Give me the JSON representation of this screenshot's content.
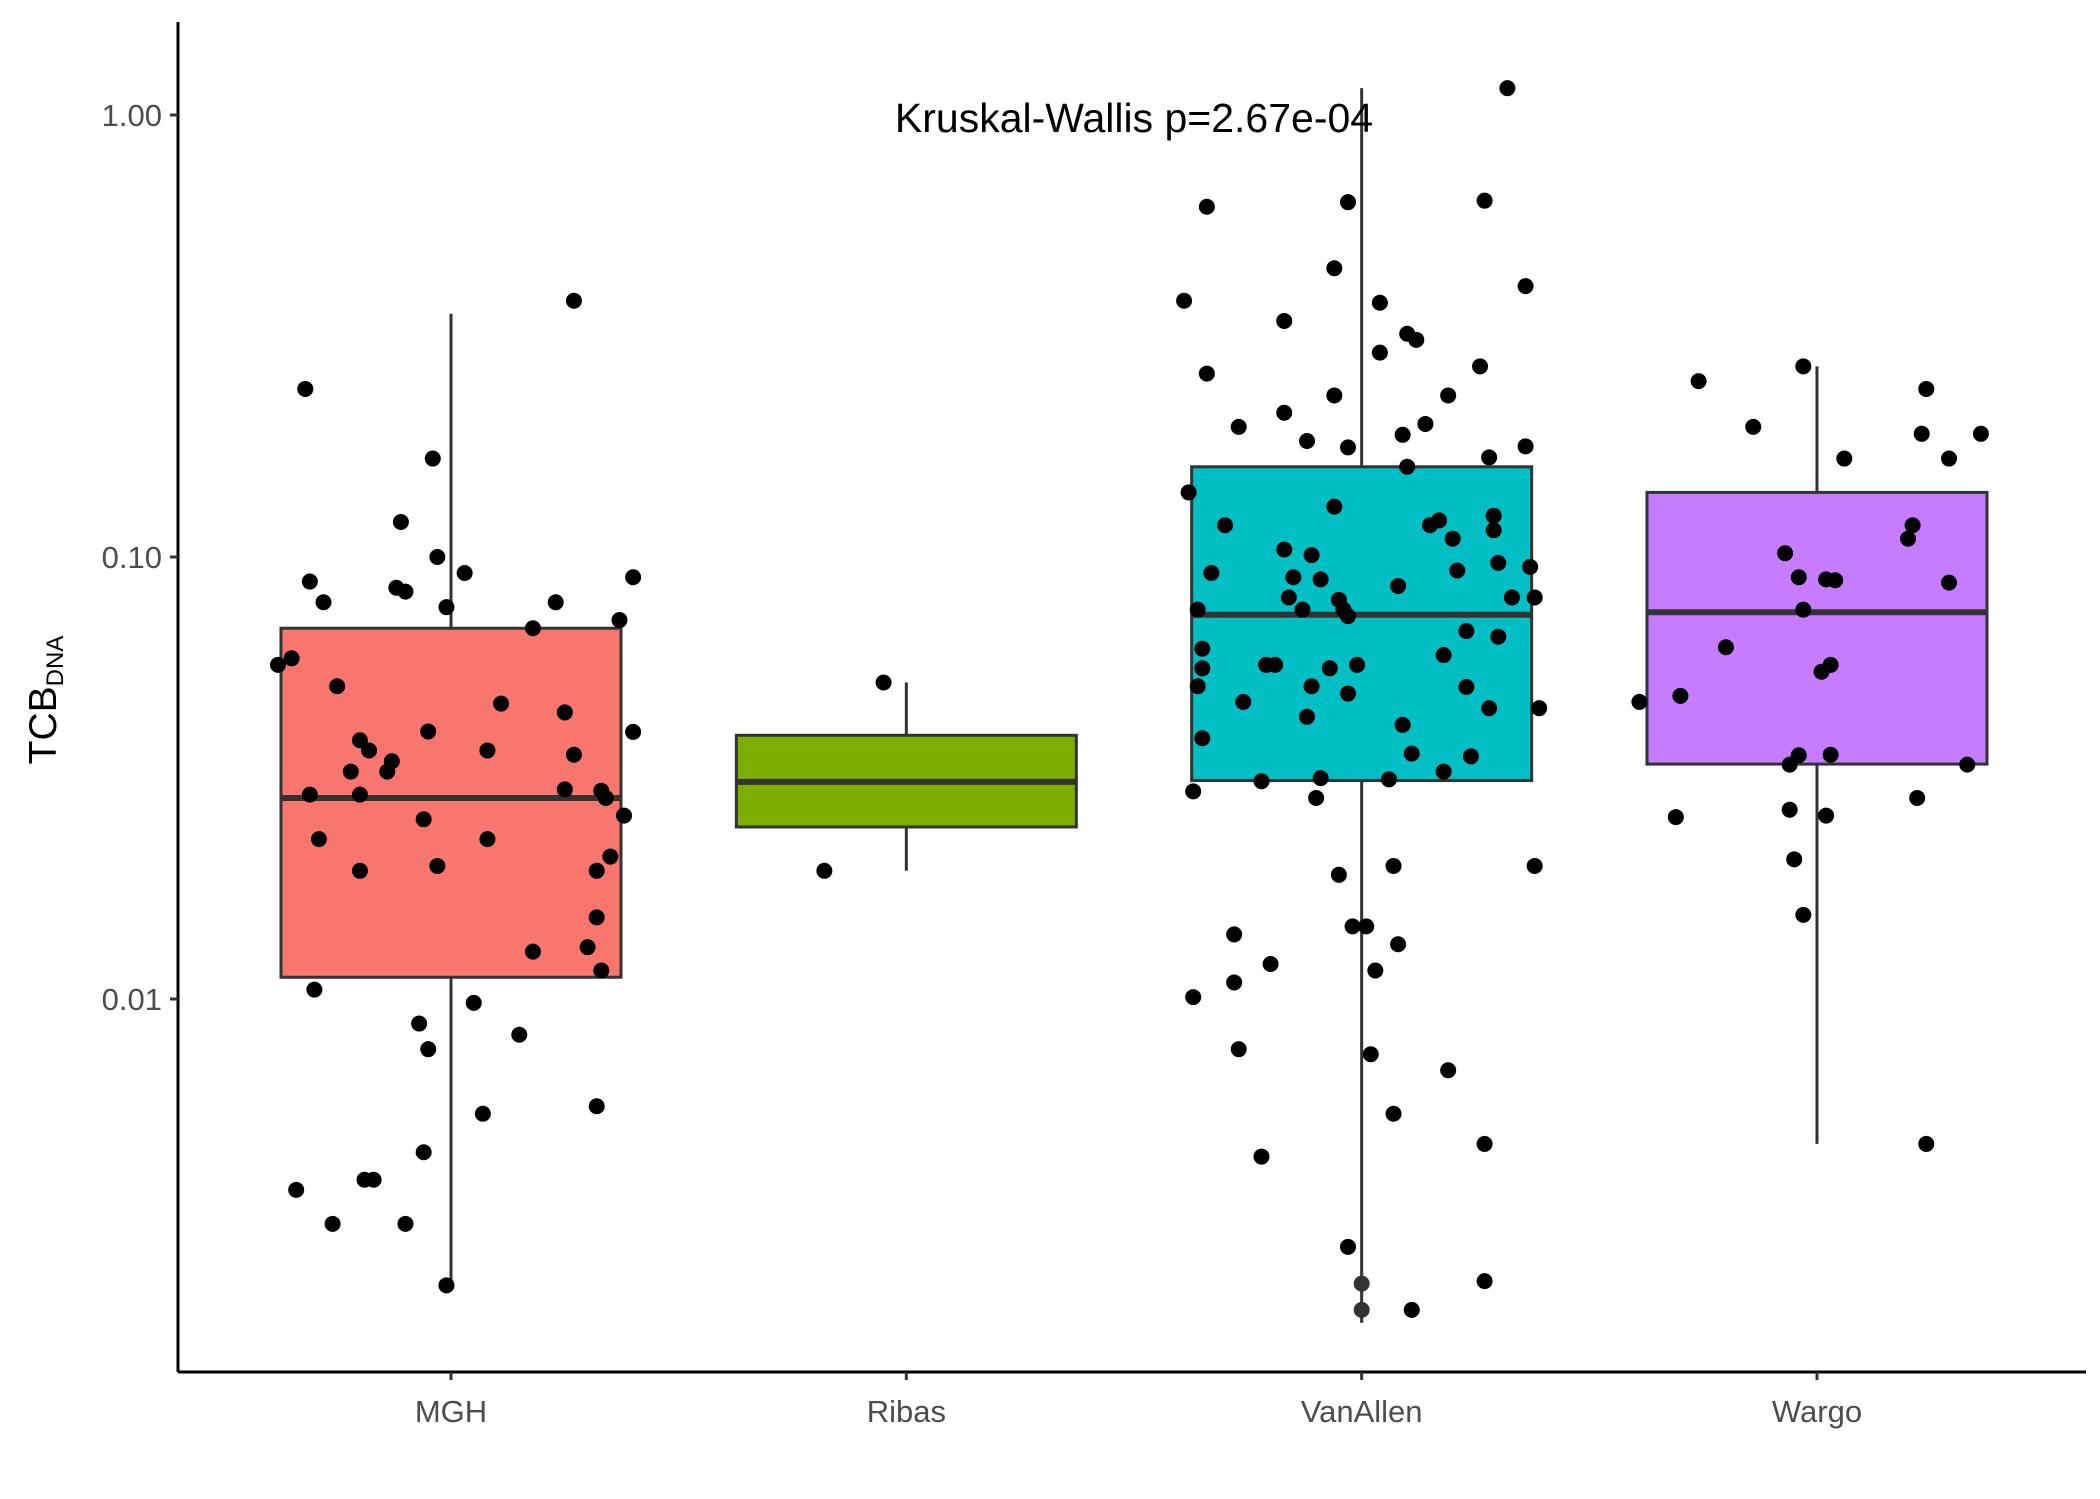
{
  "chart_data": {
    "type": "box",
    "annotation": "Kruskal-Wallis p=2.67e-04",
    "xlabel": "",
    "ylabel": {
      "main": "TCB",
      "subscript": "DNA"
    },
    "y_scale": "log10",
    "ylim": [
      0.00185,
      1.35
    ],
    "y_ticks": [
      {
        "value": 0.01,
        "label": "0.01"
      },
      {
        "value": 0.1,
        "label": "0.10"
      },
      {
        "value": 1.0,
        "label": "1.00"
      }
    ],
    "grid": false,
    "legend": "none",
    "point_color": "#000000",
    "box_outline_color": "#333333",
    "categories": [
      "MGH",
      "Ribas",
      "VanAllen",
      "Wargo"
    ],
    "groups": [
      {
        "name": "MGH",
        "color": "#F8766D",
        "box": {
          "q1": 0.0112,
          "median": 0.0285,
          "q3": 0.069,
          "whisker_low": 0.00225,
          "whisker_high": 0.355
        },
        "points": [
          [
            -0.38,
            0.057
          ],
          [
            -0.35,
            0.059
          ],
          [
            -0.32,
            0.24
          ],
          [
            -0.31,
            0.088
          ],
          [
            -0.31,
            0.029
          ],
          [
            -0.3,
            0.0105
          ],
          [
            -0.29,
            0.023
          ],
          [
            -0.28,
            0.079
          ],
          [
            -0.25,
            0.051
          ],
          [
            -0.22,
            0.0327
          ],
          [
            -0.2,
            0.0195
          ],
          [
            -0.2,
            0.029
          ],
          [
            -0.2,
            0.0385
          ],
          [
            -0.18,
            0.0365
          ],
          [
            -0.14,
            0.0327
          ],
          [
            -0.13,
            0.0345
          ],
          [
            -0.12,
            0.0852
          ],
          [
            -0.11,
            0.12
          ],
          [
            -0.1,
            0.0835
          ],
          [
            -0.06,
            0.0255
          ],
          [
            -0.05,
            0.0403
          ],
          [
            -0.04,
            0.167
          ],
          [
            -0.03,
            0.1
          ],
          [
            -0.03,
            0.02
          ],
          [
            -0.01,
            0.077
          ],
          [
            0.03,
            0.092
          ],
          [
            0.05,
            0.0098
          ],
          [
            0.08,
            0.0365
          ],
          [
            0.08,
            0.023
          ],
          [
            0.11,
            0.0466
          ],
          [
            0.15,
            0.0083
          ],
          [
            0.18,
            0.0128
          ],
          [
            0.18,
            0.069
          ],
          [
            0.23,
            0.079
          ],
          [
            0.25,
            0.0298
          ],
          [
            0.25,
            0.0445
          ],
          [
            0.27,
            0.0357
          ],
          [
            0.27,
            0.38
          ],
          [
            0.32,
            0.0195
          ],
          [
            0.33,
            0.0296
          ],
          [
            0.34,
            0.0285
          ],
          [
            0.35,
            0.021
          ],
          [
            0.37,
            0.072
          ],
          [
            0.38,
            0.026
          ],
          [
            0.4,
            0.09
          ],
          [
            0.4,
            0.0402
          ],
          [
            0.3,
            0.0131
          ],
          [
            0.32,
            0.0153
          ],
          [
            0.33,
            0.0116
          ],
          [
            0.32,
            0.00572
          ],
          [
            -0.07,
            0.0088
          ],
          [
            -0.05,
            0.0077
          ],
          [
            -0.06,
            0.0045
          ],
          [
            0.07,
            0.0055
          ],
          [
            -0.34,
            0.0037
          ],
          [
            -0.26,
            0.0031
          ],
          [
            -0.19,
            0.0039
          ],
          [
            -0.17,
            0.0039
          ],
          [
            -0.1,
            0.0031
          ],
          [
            -0.01,
            0.00225
          ]
        ]
      },
      {
        "name": "Ribas",
        "color": "#7CAE00",
        "box": {
          "q1": 0.0245,
          "median": 0.031,
          "q3": 0.0395,
          "whisker_low": 0.0195,
          "whisker_high": 0.052
        },
        "points": [
          [
            -0.18,
            0.0195
          ],
          [
            -0.05,
            0.052
          ]
        ]
      },
      {
        "name": "VanAllen",
        "color": "#00BFC4",
        "box": {
          "q1": 0.0312,
          "median": 0.074,
          "q3": 0.16,
          "whisker_low": 0.00185,
          "whisker_high": 1.15
        },
        "points": [
          [
            -0.39,
            0.38
          ],
          [
            -0.38,
            0.14
          ],
          [
            -0.37,
            0.0295
          ],
          [
            -0.37,
            0.0101
          ],
          [
            -0.36,
            0.051
          ],
          [
            -0.36,
            0.076
          ],
          [
            -0.35,
            0.056
          ],
          [
            -0.35,
            0.062
          ],
          [
            -0.35,
            0.0389
          ],
          [
            -0.34,
            0.26
          ],
          [
            -0.34,
            0.62
          ],
          [
            -0.33,
            0.092
          ],
          [
            -0.3,
            0.118
          ],
          [
            -0.28,
            0.014
          ],
          [
            -0.28,
            0.0109
          ],
          [
            -0.27,
            0.0077
          ],
          [
            -0.27,
            0.197
          ],
          [
            -0.26,
            0.047
          ],
          [
            -0.22,
            0.0311
          ],
          [
            -0.22,
            0.0044
          ],
          [
            -0.21,
            0.057
          ],
          [
            -0.2,
            0.012
          ],
          [
            -0.19,
            0.057
          ],
          [
            -0.17,
            0.104
          ],
          [
            -0.17,
            0.342
          ],
          [
            -0.17,
            0.212
          ],
          [
            -0.16,
            0.081
          ],
          [
            -0.15,
            0.09
          ],
          [
            -0.13,
            0.076
          ],
          [
            -0.12,
            0.0435
          ],
          [
            -0.12,
            0.183
          ],
          [
            -0.11,
            0.101
          ],
          [
            -0.11,
            0.051
          ],
          [
            -0.1,
            0.0285
          ],
          [
            -0.09,
            0.089
          ],
          [
            -0.09,
            0.0316
          ],
          [
            -0.07,
            0.056
          ],
          [
            -0.06,
            0.232
          ],
          [
            -0.06,
            0.45
          ],
          [
            -0.06,
            0.13
          ],
          [
            -0.05,
            0.0191
          ],
          [
            -0.05,
            0.08
          ],
          [
            -0.04,
            0.076
          ],
          [
            -0.03,
            0.0735
          ],
          [
            -0.03,
            0.0491
          ],
          [
            -0.03,
            0.177
          ],
          [
            -0.03,
            0.635
          ],
          [
            -0.02,
            0.0146
          ],
          [
            -0.01,
            0.057
          ],
          [
            0.01,
            0.0146
          ],
          [
            0.02,
            0.0075
          ],
          [
            0.03,
            0.0116
          ],
          [
            0.04,
            0.376
          ],
          [
            0.04,
            0.29
          ],
          [
            0.06,
            0.0314
          ],
          [
            0.07,
            0.0055
          ],
          [
            0.07,
            0.02
          ],
          [
            0.08,
            0.0133
          ],
          [
            0.08,
            0.086
          ],
          [
            0.09,
            0.0417
          ],
          [
            0.09,
            0.189
          ],
          [
            0.1,
            0.16
          ],
          [
            0.1,
            0.32
          ],
          [
            0.11,
            0.0359
          ],
          [
            0.12,
            0.31
          ],
          [
            0.14,
            0.2
          ],
          [
            0.15,
            0.118
          ],
          [
            0.17,
            0.121
          ],
          [
            0.18,
            0.06
          ],
          [
            0.18,
            0.0327
          ],
          [
            0.19,
            0.0069
          ],
          [
            0.19,
            0.232
          ],
          [
            0.2,
            0.11
          ],
          [
            0.21,
            0.0932
          ],
          [
            0.23,
            0.068
          ],
          [
            0.23,
            0.0508
          ],
          [
            0.24,
            0.0354
          ],
          [
            0.26,
            0.27
          ],
          [
            0.27,
            0.0023
          ],
          [
            0.27,
            0.0047
          ],
          [
            0.27,
            0.64
          ],
          [
            0.28,
            0.168
          ],
          [
            0.28,
            0.0455
          ],
          [
            0.29,
            0.115
          ],
          [
            0.29,
            0.124
          ],
          [
            0.3,
            0.097
          ],
          [
            0.3,
            0.066
          ],
          [
            0.32,
            1.15
          ],
          [
            0.33,
            0.081
          ],
          [
            0.36,
            0.41
          ],
          [
            0.36,
            0.178
          ],
          [
            0.37,
            0.095
          ],
          [
            0.38,
            0.081
          ],
          [
            0.38,
            0.02
          ],
          [
            0.39,
            0.0455
          ],
          [
            -0.03,
            0.00275
          ],
          [
            0.11,
            0.00198
          ]
        ]
      },
      {
        "name": "Wargo",
        "color": "#C77CFF",
        "box": {
          "q1": 0.034,
          "median": 0.075,
          "q3": 0.14,
          "whisker_low": 0.0047,
          "whisker_high": 0.27
        },
        "points": [
          [
            -0.39,
            0.047
          ],
          [
            -0.31,
            0.0258
          ],
          [
            -0.3,
            0.0485
          ],
          [
            -0.26,
            0.25
          ],
          [
            -0.2,
            0.0625
          ],
          [
            -0.14,
            0.197
          ],
          [
            -0.07,
            0.102
          ],
          [
            -0.06,
            0.0339
          ],
          [
            -0.06,
            0.0268
          ],
          [
            -0.05,
            0.0207
          ],
          [
            -0.04,
            0.0356
          ],
          [
            -0.04,
            0.09
          ],
          [
            -0.03,
            0.076
          ],
          [
            -0.03,
            0.27
          ],
          [
            -0.03,
            0.0155
          ],
          [
            0.01,
            0.055
          ],
          [
            0.02,
            0.089
          ],
          [
            0.02,
            0.026
          ],
          [
            0.03,
            0.0357
          ],
          [
            0.03,
            0.057
          ],
          [
            0.04,
            0.0886
          ],
          [
            0.06,
            0.167
          ],
          [
            0.2,
            0.11
          ],
          [
            0.21,
            0.118
          ],
          [
            0.22,
            0.0285
          ],
          [
            0.23,
            0.19
          ],
          [
            0.24,
            0.24
          ],
          [
            0.24,
            0.0047
          ],
          [
            0.29,
            0.0875
          ],
          [
            0.29,
            0.167
          ],
          [
            0.33,
            0.0339
          ],
          [
            0.36,
            0.19
          ]
        ]
      }
    ],
    "outlier_points": [
      {
        "group": "VanAllen",
        "value": 0.00227
      },
      {
        "group": "VanAllen",
        "value": 0.00198
      }
    ]
  }
}
